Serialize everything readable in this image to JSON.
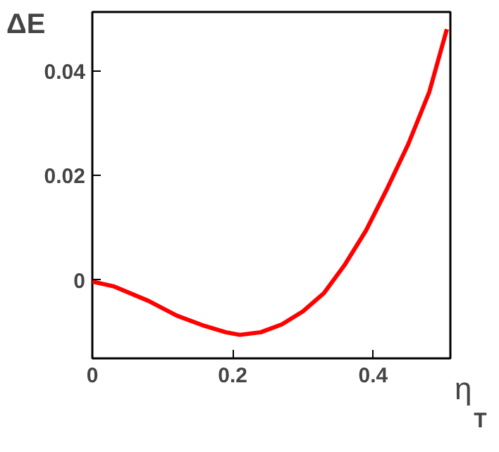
{
  "chart_data": {
    "type": "line",
    "xlabel": "η$_{T}$",
    "ylabel": "ΔE",
    "x": [
      0,
      0.03,
      0.08,
      0.12,
      0.16,
      0.19,
      0.21,
      0.24,
      0.27,
      0.3,
      0.33,
      0.36,
      0.39,
      0.42,
      0.45,
      0.48,
      0.505
    ],
    "series": [
      {
        "color": "#ff0000",
        "values": [
          -0.0003,
          -0.0012,
          -0.004,
          -0.0068,
          -0.0088,
          -0.01,
          -0.0105,
          -0.01,
          -0.0085,
          -0.006,
          -0.0025,
          0.003,
          0.0095,
          0.0175,
          0.026,
          0.036,
          0.048
        ]
      }
    ],
    "xlim": [
      0,
      0.51
    ],
    "ylim": [
      -0.015,
      0.0513
    ],
    "xticks": [
      0,
      0.2,
      0.4
    ],
    "yticks": [
      0,
      0.02,
      0.04
    ],
    "grid": false,
    "line_style": "solid",
    "marker": "none"
  }
}
